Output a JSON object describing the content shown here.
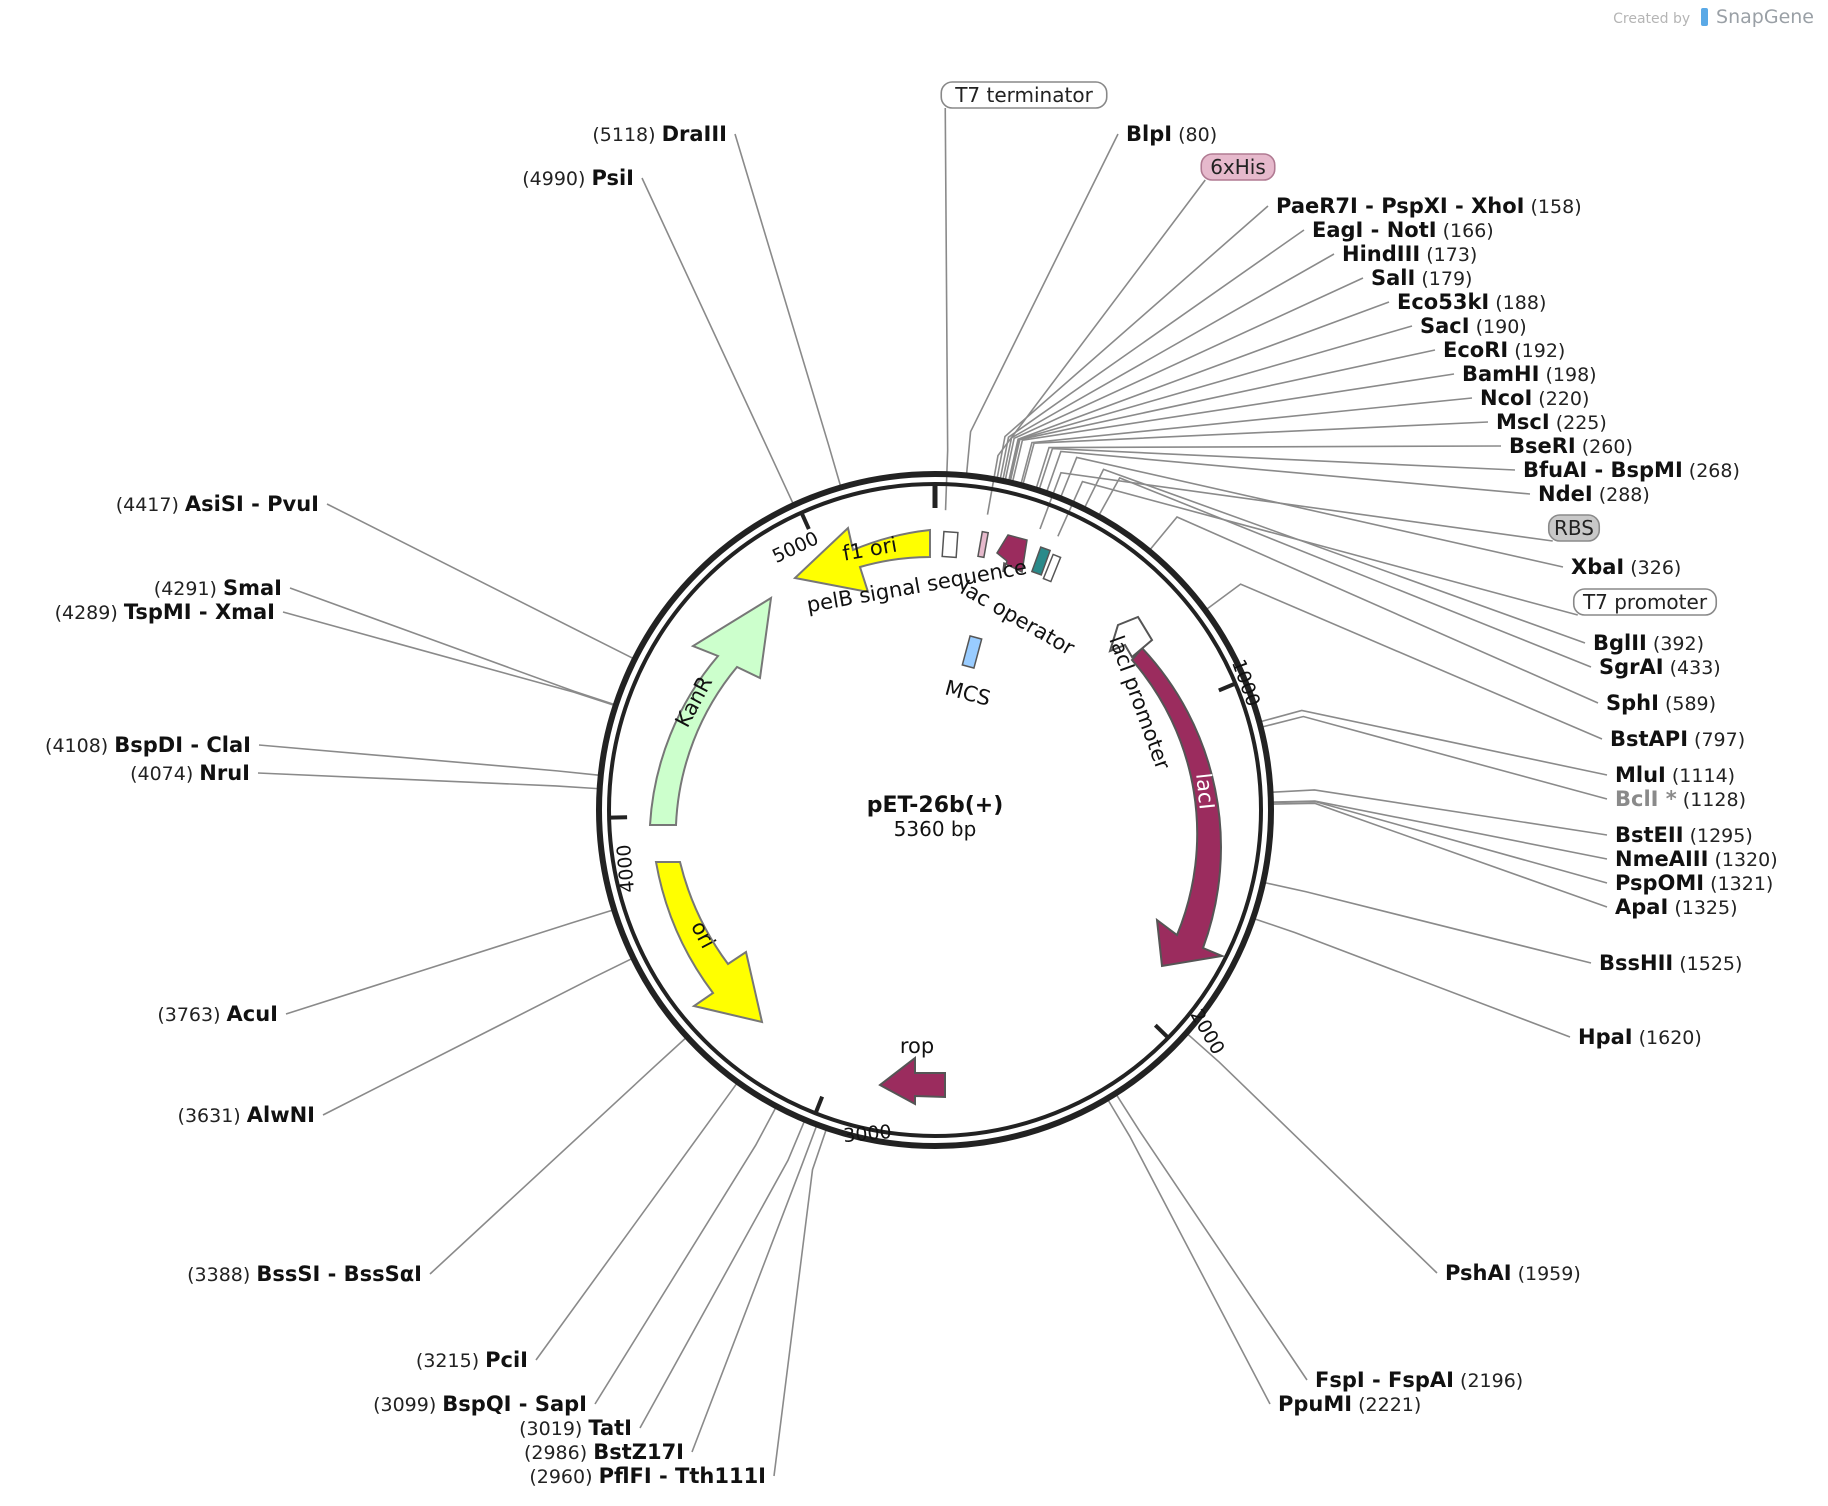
{
  "credit": {
    "prefix": "Created by",
    "brand": "SnapGene"
  },
  "plasmid": {
    "name": "pET-26b(+)",
    "length_label": "5360 bp",
    "length": 5360
  },
  "ticks": [
    "1000",
    "2000",
    "3000",
    "4000",
    "5000"
  ],
  "boxed_features": [
    {
      "id": "t7term",
      "label": "T7 terminator",
      "fill": "#ffffff",
      "stroke": "#888888"
    },
    {
      "id": "his",
      "label": "6xHis",
      "fill": "#e6b9cc",
      "stroke": "#b07a92"
    },
    {
      "id": "rbs",
      "label": "RBS",
      "fill": "#c8c8c8",
      "stroke": "#8a8a8a"
    },
    {
      "id": "t7prom",
      "label": "T7 promoter",
      "fill": "#ffffff",
      "stroke": "#888888"
    }
  ],
  "features": {
    "f1_ori": "f1 ori",
    "kanr": "KanR",
    "ori": "ori",
    "laci": "lacI",
    "rop": "rop",
    "pelb": "pelB signal sequence",
    "lac_operator": "lac operator",
    "laci_promoter": "lacI promoter",
    "mcs": "MCS"
  },
  "colors": {
    "yellow": "#ffff00",
    "kanr": "#ccffcc",
    "maroon": "#9b2c5e",
    "teal": "#2a8a8a",
    "mcs": "#99ccff",
    "pink": "#e6b9cc"
  },
  "sites": [
    {
      "id": "blpi",
      "names": [
        "BlpI"
      ],
      "pos": "(80)"
    },
    {
      "id": "paer7i",
      "names": [
        "PaeR7I",
        "PspXI",
        "XhoI"
      ],
      "pos": "(158)"
    },
    {
      "id": "eagi",
      "names": [
        "EagI",
        "NotI"
      ],
      "pos": "(166)"
    },
    {
      "id": "hindiii",
      "names": [
        "HindIII"
      ],
      "pos": "(173)"
    },
    {
      "id": "sali",
      "names": [
        "SalI"
      ],
      "pos": "(179)"
    },
    {
      "id": "eco53ki",
      "names": [
        "Eco53kI"
      ],
      "pos": "(188)"
    },
    {
      "id": "saci",
      "names": [
        "SacI"
      ],
      "pos": "(190)"
    },
    {
      "id": "ecori",
      "names": [
        "EcoRI"
      ],
      "pos": "(192)"
    },
    {
      "id": "bamhi",
      "names": [
        "BamHI"
      ],
      "pos": "(198)"
    },
    {
      "id": "ncoi",
      "names": [
        "NcoI"
      ],
      "pos": "(220)"
    },
    {
      "id": "msci",
      "names": [
        "MscI"
      ],
      "pos": "(225)"
    },
    {
      "id": "bseri",
      "names": [
        "BseRI"
      ],
      "pos": "(260)"
    },
    {
      "id": "bfuai",
      "names": [
        "BfuAI",
        "BspMI"
      ],
      "pos": "(268)"
    },
    {
      "id": "ndei",
      "names": [
        "NdeI"
      ],
      "pos": "(288)"
    },
    {
      "id": "xbai",
      "names": [
        "XbaI"
      ],
      "pos": "(326)"
    },
    {
      "id": "bglii",
      "names": [
        "BglII"
      ],
      "pos": "(392)"
    },
    {
      "id": "sgrai",
      "names": [
        "SgrAI"
      ],
      "pos": "(433)"
    },
    {
      "id": "sphi",
      "names": [
        "SphI"
      ],
      "pos": "(589)"
    },
    {
      "id": "bstapi",
      "names": [
        "BstAPI"
      ],
      "pos": "(797)"
    },
    {
      "id": "mlui",
      "names": [
        "MluI"
      ],
      "pos": "(1114)"
    },
    {
      "id": "bcli",
      "names": [
        "BclI *"
      ],
      "pos": "(1128)",
      "gray": true
    },
    {
      "id": "bsteii",
      "names": [
        "BstEII"
      ],
      "pos": "(1295)"
    },
    {
      "id": "nmeaiii",
      "names": [
        "NmeAIII"
      ],
      "pos": "(1320)"
    },
    {
      "id": "pspomi",
      "names": [
        "PspOMI"
      ],
      "pos": "(1321)"
    },
    {
      "id": "apai",
      "names": [
        "ApaI"
      ],
      "pos": "(1325)"
    },
    {
      "id": "bsshii",
      "names": [
        "BssHII"
      ],
      "pos": "(1525)"
    },
    {
      "id": "hpai",
      "names": [
        "HpaI"
      ],
      "pos": "(1620)"
    },
    {
      "id": "pshai",
      "names": [
        "PshAI"
      ],
      "pos": "(1959)"
    },
    {
      "id": "fspi",
      "names": [
        "FspI",
        "FspAI"
      ],
      "pos": "(2196)"
    },
    {
      "id": "ppumi",
      "names": [
        "PpuMI"
      ],
      "pos": "(2221)"
    },
    {
      "id": "pflfi",
      "names": [
        "PflFI",
        "Tth111I"
      ],
      "pos": "(2960)"
    },
    {
      "id": "bstz17i",
      "names": [
        "BstZ17I"
      ],
      "pos": "(2986)"
    },
    {
      "id": "tati",
      "names": [
        "TatI"
      ],
      "pos": "(3019)"
    },
    {
      "id": "bspqi",
      "names": [
        "BspQI",
        "SapI"
      ],
      "pos": "(3099)"
    },
    {
      "id": "pcii",
      "names": [
        "PciI"
      ],
      "pos": "(3215)"
    },
    {
      "id": "bsssi",
      "names": [
        "BssSI",
        "BssSαI"
      ],
      "pos": "(3388)"
    },
    {
      "id": "alwni",
      "names": [
        "AlwNI"
      ],
      "pos": "(3631)"
    },
    {
      "id": "acui",
      "names": [
        "AcuI"
      ],
      "pos": "(3763)"
    },
    {
      "id": "nrui",
      "names": [
        "NruI"
      ],
      "pos": "(4074)"
    },
    {
      "id": "bspdi",
      "names": [
        "BspDI",
        "ClaI"
      ],
      "pos": "(4108)"
    },
    {
      "id": "tspmi",
      "names": [
        "TspMI",
        "XmaI"
      ],
      "pos": "(4289)"
    },
    {
      "id": "smai",
      "names": [
        "SmaI"
      ],
      "pos": "(4291)"
    },
    {
      "id": "asisi",
      "names": [
        "AsiSI",
        "PvuI"
      ],
      "pos": "(4417)"
    },
    {
      "id": "psii",
      "names": [
        "PsiI"
      ],
      "pos": "(4990)"
    },
    {
      "id": "draiii",
      "names": [
        "DraIII"
      ],
      "pos": "(5118)"
    }
  ]
}
